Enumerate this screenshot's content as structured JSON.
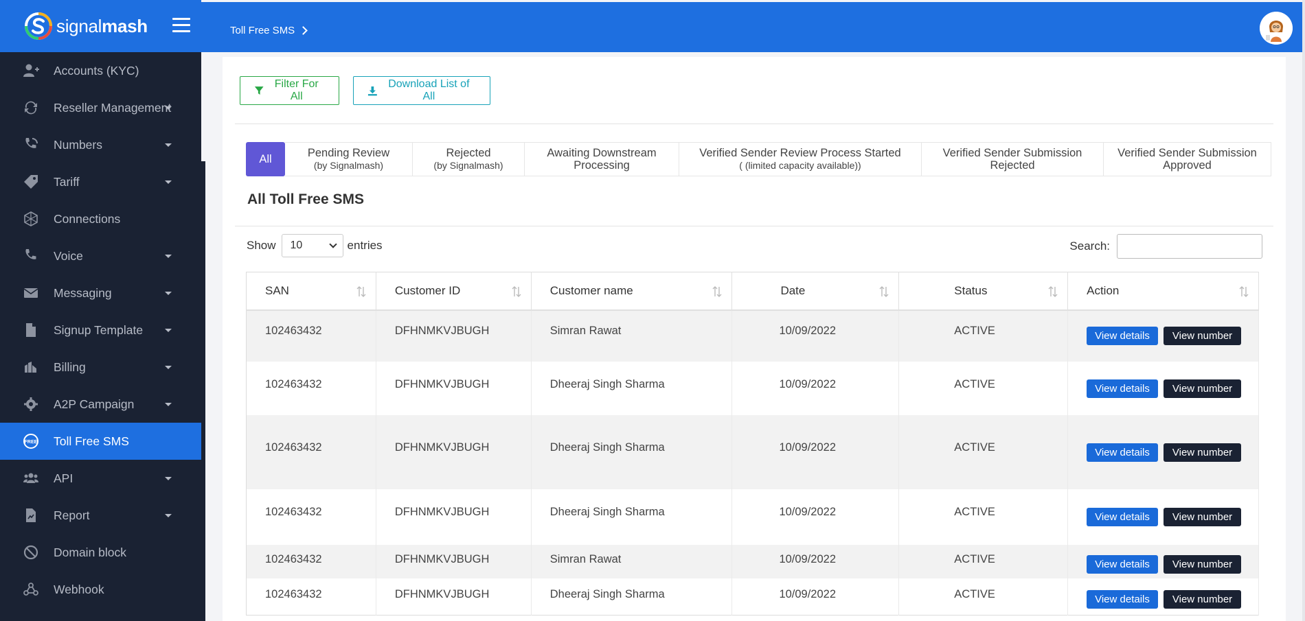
{
  "brand": {
    "name_light": "signal",
    "name_bold": "mash"
  },
  "sidebar": {
    "items": [
      {
        "label": "Accounts (KYC)",
        "icon": "user-plus-icon",
        "caret": false,
        "active": false
      },
      {
        "label": "Reseller Management",
        "icon": "sync-icon",
        "caret": true,
        "active": false
      },
      {
        "label": "Numbers",
        "icon": "phone-volume-icon",
        "caret": true,
        "active": false
      },
      {
        "label": "Tariff",
        "icon": "tag-icon",
        "caret": true,
        "active": false
      },
      {
        "label": "Connections",
        "icon": "network-icon",
        "caret": false,
        "active": false
      },
      {
        "label": "Voice",
        "icon": "phone-icon",
        "caret": true,
        "active": false
      },
      {
        "label": "Messaging",
        "icon": "envelope-icon",
        "caret": true,
        "active": false
      },
      {
        "label": "Signup Template",
        "icon": "file-icon",
        "caret": true,
        "active": false
      },
      {
        "label": "Billing",
        "icon": "money-icon",
        "caret": true,
        "active": false
      },
      {
        "label": "A2P Campaign",
        "icon": "gear-icon",
        "caret": true,
        "active": false
      },
      {
        "label": "Toll Free SMS",
        "icon": "toll-free-icon",
        "caret": false,
        "active": true
      },
      {
        "label": "API",
        "icon": "users-icon",
        "caret": true,
        "active": false
      },
      {
        "label": "Report",
        "icon": "report-icon",
        "caret": true,
        "active": false
      },
      {
        "label": "Domain block",
        "icon": "ban-icon",
        "caret": false,
        "active": false
      },
      {
        "label": "Webhook",
        "icon": "webhook-icon",
        "caret": false,
        "active": false
      }
    ]
  },
  "topbar": {
    "breadcrumb": "Toll Free SMS"
  },
  "toolbar": {
    "filter_label": "Filter For All",
    "download_label": "Download List of All"
  },
  "tabs": [
    {
      "label": "All",
      "sub": ""
    },
    {
      "label": "Pending Review",
      "sub": "(by Signalmash)"
    },
    {
      "label": "Rejected",
      "sub": "(by Signalmash)"
    },
    {
      "label": "Awaiting Downstream",
      "sub": "Processing"
    },
    {
      "label": "Verified Sender Review Process Started",
      "sub": "( (limited capacity available))"
    },
    {
      "label": "Verified Sender Submission",
      "sub": "Rejected"
    },
    {
      "label": "Verified Sender Submission",
      "sub": "Approved"
    }
  ],
  "section_title": "All Toll Free SMS",
  "length_menu": {
    "show": "Show",
    "value": "10",
    "entries": "entries"
  },
  "search": {
    "label": "Search:",
    "placeholder": ""
  },
  "table": {
    "columns": [
      "SAN",
      "Customer ID",
      "Customer name",
      "Date",
      "Status",
      "Action"
    ],
    "rows": [
      {
        "san": "102463432",
        "customer_id": "DFHNMKVJBUGH",
        "name": "Simran Rawat",
        "date": "10/09/2022",
        "status": "ACTIVE"
      },
      {
        "san": "102463432",
        "customer_id": "DFHNMKVJBUGH",
        "name": "Dheeraj Singh Sharma",
        "date": "10/09/2022",
        "status": "ACTIVE"
      },
      {
        "san": "102463432",
        "customer_id": "DFHNMKVJBUGH",
        "name": "Dheeraj Singh Sharma",
        "date": "10/09/2022",
        "status": "ACTIVE"
      },
      {
        "san": "102463432",
        "customer_id": "DFHNMKVJBUGH",
        "name": "Dheeraj Singh Sharma",
        "date": "10/09/2022",
        "status": "ACTIVE"
      },
      {
        "san": "102463432",
        "customer_id": "DFHNMKVJBUGH",
        "name": "Simran Rawat",
        "date": "10/09/2022",
        "status": "ACTIVE"
      },
      {
        "san": "102463432",
        "customer_id": "DFHNMKVJBUGH",
        "name": "Dheeraj Singh Sharma",
        "date": "10/09/2022",
        "status": "ACTIVE"
      }
    ],
    "view_details_label": "View details",
    "view_number_label": "View number"
  }
}
